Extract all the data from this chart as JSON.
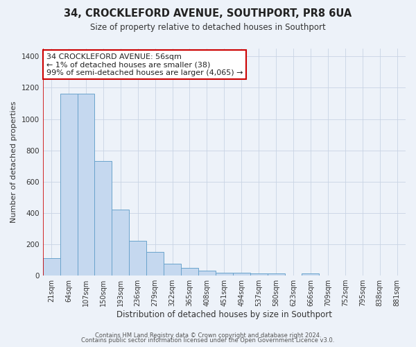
{
  "title": "34, CROCKLEFORD AVENUE, SOUTHPORT, PR8 6UA",
  "subtitle": "Size of property relative to detached houses in Southport",
  "xlabel": "Distribution of detached houses by size in Southport",
  "ylabel": "Number of detached properties",
  "categories": [
    "21sqm",
    "64sqm",
    "107sqm",
    "150sqm",
    "193sqm",
    "236sqm",
    "279sqm",
    "322sqm",
    "365sqm",
    "408sqm",
    "451sqm",
    "494sqm",
    "537sqm",
    "580sqm",
    "623sqm",
    "666sqm",
    "709sqm",
    "752sqm",
    "795sqm",
    "838sqm",
    "881sqm"
  ],
  "bar_heights": [
    110,
    1160,
    1160,
    730,
    420,
    220,
    150,
    75,
    50,
    32,
    20,
    20,
    15,
    15,
    0,
    15,
    0,
    0,
    0,
    0,
    0
  ],
  "bar_color": "#c5d8ef",
  "bar_edge_color": "#6aa3cc",
  "annotation_title": "34 CROCKLEFORD AVENUE: 56sqm",
  "annotation_line1": "← 1% of detached houses are smaller (38)",
  "annotation_line2": "99% of semi-detached houses are larger (4,065) →",
  "annotation_box_color": "#ffffff",
  "annotation_box_edge": "#cc0000",
  "red_line_color": "#cc0000",
  "ylim": [
    0,
    1450
  ],
  "yticks": [
    0,
    200,
    400,
    600,
    800,
    1000,
    1200,
    1400
  ],
  "footer1": "Contains HM Land Registry data © Crown copyright and database right 2024.",
  "footer2": "Contains public sector information licensed under the Open Government Licence v3.0.",
  "bg_color": "#edf2f9",
  "grid_color": "#c8d4e4",
  "title_fontsize": 10.5,
  "subtitle_fontsize": 8.5,
  "ylabel_fontsize": 8,
  "xlabel_fontsize": 8.5,
  "tick_fontsize": 7,
  "footer_fontsize": 6,
  "ann_fontsize": 8
}
